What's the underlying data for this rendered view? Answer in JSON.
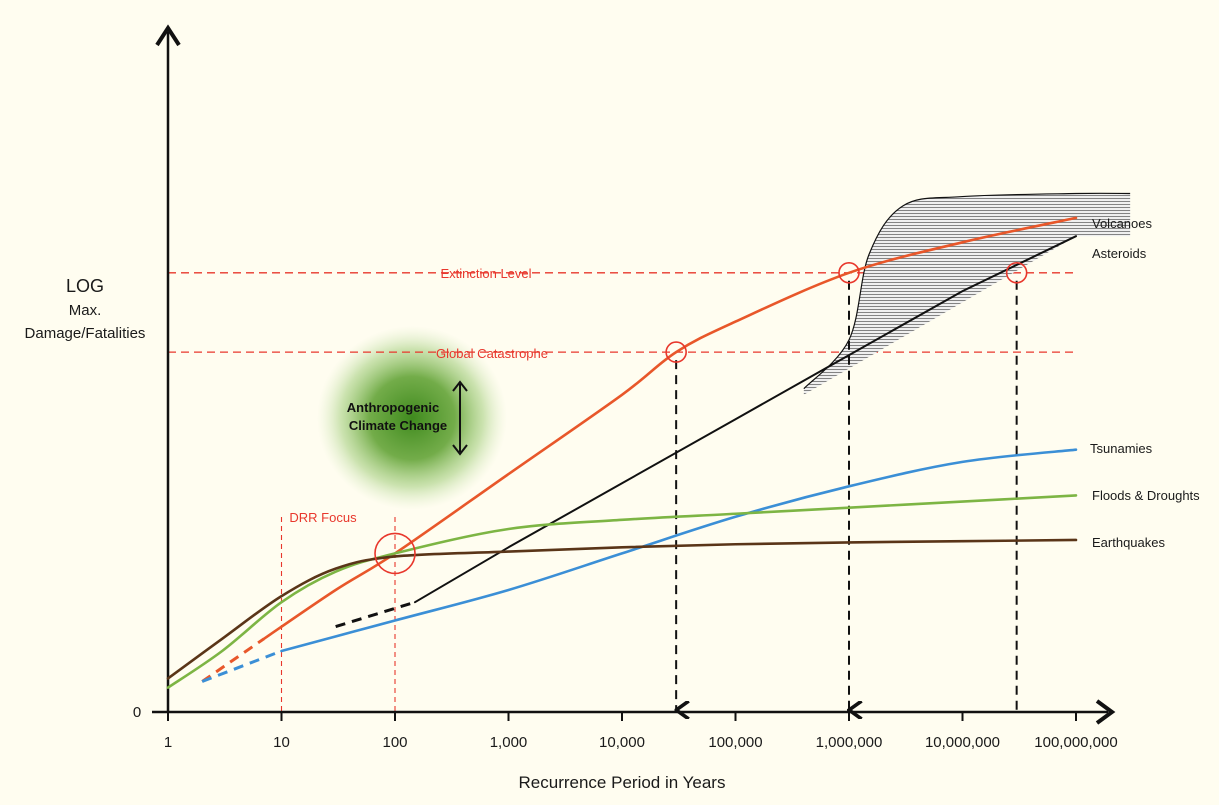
{
  "chart_data": {
    "type": "line",
    "x_scale": "log",
    "xlabel": "Recurrence Period in Years",
    "ylabel": [
      "LOG",
      "Max.",
      "Damage/Fatalities"
    ],
    "y_origin_label": "0",
    "x_ticks": [
      1,
      10,
      100,
      1000,
      10000,
      100000,
      1000000,
      10000000,
      100000000
    ],
    "x_tick_labels": [
      "1",
      "10",
      "100",
      "1,000",
      "10,000",
      "100,000",
      "1,000,000",
      "10,000,000",
      "100,000,000"
    ],
    "xlim": [
      1,
      100000000
    ],
    "ylim": [
      0,
      10
    ],
    "thresholds": [
      {
        "label": "Extinction Level",
        "y": 7.2
      },
      {
        "label": "Global Catastrophe",
        "y": 5.9
      }
    ],
    "drr_focus": {
      "label": "DRR Focus",
      "x_range": [
        10,
        100
      ]
    },
    "climate_blob": {
      "label_line1": "Anthropogenic",
      "label_line2": "Climate Change"
    },
    "series": [
      {
        "name": "Volcanoes",
        "color": "#e8572a",
        "x": [
          7,
          30,
          100,
          1000,
          10000,
          30000,
          100000,
          1000000,
          10000000,
          100000000
        ],
        "y": [
          1.2,
          2.0,
          2.6,
          3.9,
          5.2,
          5.9,
          6.4,
          7.2,
          7.7,
          8.1
        ]
      },
      {
        "name": "Asteroids",
        "color": "#111111",
        "x": [
          150,
          1000,
          10000,
          100000,
          1000000,
          10000000,
          100000000
        ],
        "y": [
          1.8,
          2.7,
          3.75,
          4.8,
          5.85,
          6.9,
          7.8
        ]
      },
      {
        "name": "Tsunamies",
        "color": "#3b8fd6",
        "x": [
          10,
          100,
          1000,
          10000,
          100000,
          1000000,
          10000000,
          100000000
        ],
        "y": [
          1.0,
          1.5,
          2.0,
          2.6,
          3.2,
          3.7,
          4.1,
          4.3
        ]
      },
      {
        "name": "Floods & Droughts",
        "color": "#7db544",
        "x": [
          1,
          3,
          10,
          30,
          100,
          1000,
          10000,
          100000,
          1000000,
          10000000,
          100000000
        ],
        "y": [
          0.4,
          1.0,
          1.8,
          2.3,
          2.6,
          3.0,
          3.15,
          3.25,
          3.35,
          3.45,
          3.55
        ]
      },
      {
        "name": "Earthquakes",
        "color": "#5a3518",
        "x": [
          1,
          3,
          10,
          30,
          100,
          1000,
          10000,
          100000,
          1000000,
          10000000,
          100000000
        ],
        "y": [
          0.55,
          1.2,
          1.9,
          2.35,
          2.55,
          2.63,
          2.7,
          2.75,
          2.78,
          2.8,
          2.82
        ]
      }
    ],
    "dashed_extensions": [
      {
        "series": "Volcanoes",
        "x": [
          2,
          7
        ],
        "y": [
          0.5,
          1.2
        ]
      },
      {
        "series": "Tsunamies",
        "x": [
          2,
          10
        ],
        "y": [
          0.5,
          1.0
        ]
      },
      {
        "series": "Asteroids",
        "x": [
          30,
          150
        ],
        "y": [
          1.4,
          1.8
        ]
      }
    ],
    "markers": [
      {
        "x": 100,
        "y": 2.6,
        "size": "large"
      },
      {
        "x": 30000,
        "y": 5.9,
        "size": "small"
      },
      {
        "x": 1000000,
        "y": 7.2,
        "size": "small"
      },
      {
        "x": 30000000,
        "y": 7.2,
        "size": "small"
      }
    ],
    "recurrence_drops": [
      {
        "x": 30000,
        "from_y": 5.9,
        "arrow": true
      },
      {
        "x": 1000000,
        "from_y": 7.2,
        "arrow": true
      },
      {
        "x": 30000000,
        "from_y": 7.2,
        "arrow": false
      }
    ],
    "asteroid_band": {
      "upper_x": [
        400000,
        1000000,
        1500000,
        3000000,
        10000000,
        100000000,
        300000000
      ],
      "upper_y": [
        5.3,
        6.1,
        7.5,
        8.3,
        8.45,
        8.5,
        8.5
      ]
    }
  }
}
